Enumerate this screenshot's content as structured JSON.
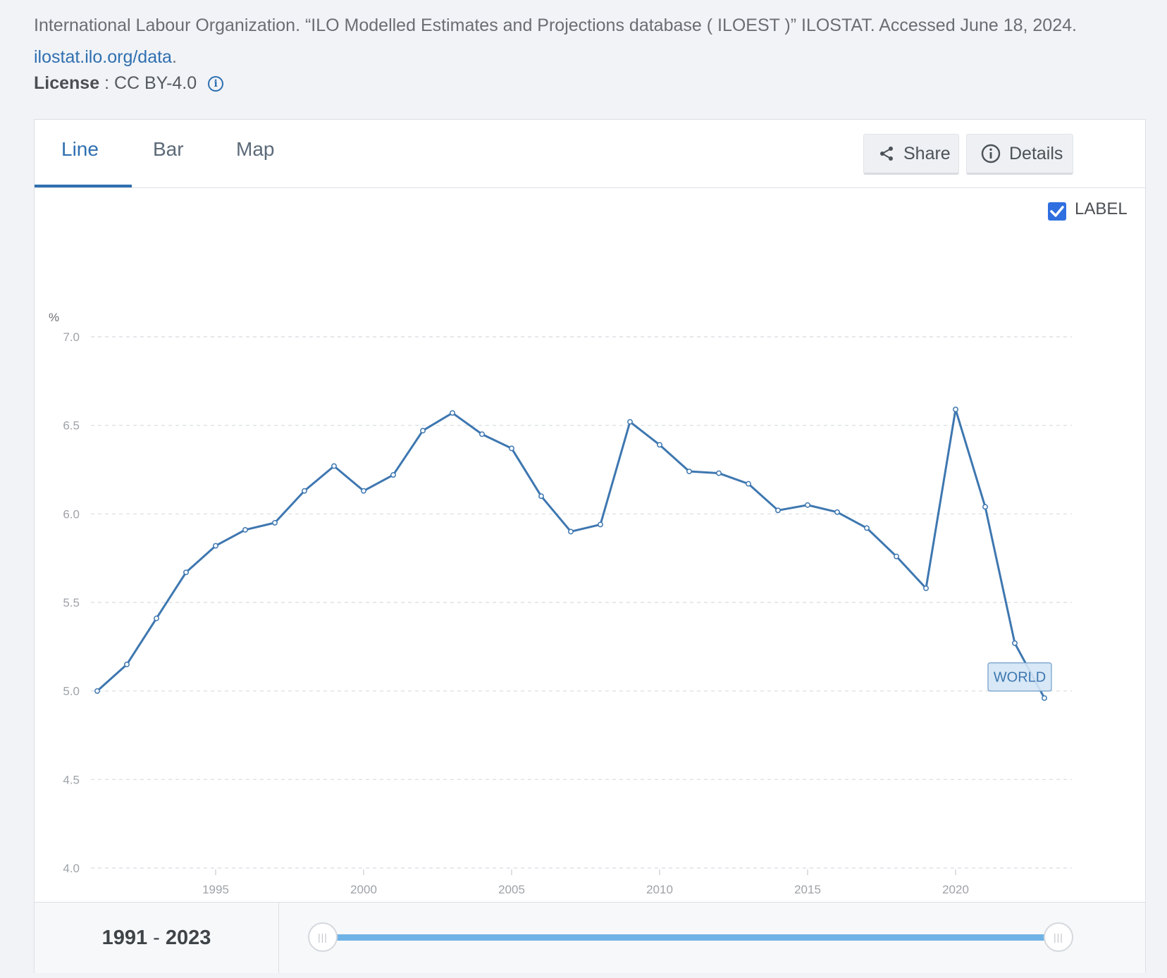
{
  "citation": {
    "text": "International Labour Organization. “ILO Modelled Estimates and Projections database ( ILOEST )” ILOSTAT. Accessed June 18, 2024.",
    "link": "ilostat.ilo.org/data",
    "link_suffix": "."
  },
  "license": {
    "label": "License",
    "value": ": CC BY-4.0"
  },
  "tabs": [
    "Line",
    "Bar",
    "Map"
  ],
  "buttons": {
    "share": "Share",
    "details": "Details"
  },
  "label_toggle": "LABEL",
  "range": {
    "start": "1991",
    "sep": "-",
    "end": "2023"
  },
  "colors": {
    "line": "#3e77b0",
    "accent": "#2f6fb0",
    "label_bg": "#d4e5f5"
  },
  "chart_data": {
    "type": "line",
    "ylabel": "%",
    "ylim": [
      4.0,
      7.0
    ],
    "yticks": [
      "7.0",
      "6.5",
      "6.0",
      "5.5",
      "5.0",
      "4.5",
      "4.0"
    ],
    "xticks": [
      "1995",
      "2000",
      "2005",
      "2010",
      "2015",
      "2020"
    ],
    "grid": true,
    "series": [
      {
        "name": "WORLD",
        "x": [
          1991,
          1992,
          1993,
          1994,
          1995,
          1996,
          1997,
          1998,
          1999,
          2000,
          2001,
          2002,
          2003,
          2004,
          2005,
          2006,
          2007,
          2008,
          2009,
          2010,
          2011,
          2012,
          2013,
          2014,
          2015,
          2016,
          2017,
          2018,
          2019,
          2020,
          2021,
          2022,
          2023
        ],
        "values": [
          5.0,
          5.15,
          5.41,
          5.67,
          5.82,
          5.91,
          5.95,
          6.13,
          6.27,
          6.13,
          6.22,
          6.47,
          6.57,
          6.45,
          6.37,
          6.1,
          5.9,
          5.94,
          6.52,
          6.39,
          6.24,
          6.23,
          6.17,
          6.02,
          6.05,
          6.01,
          5.92,
          5.76,
          5.58,
          6.59,
          6.04,
          5.27,
          4.96
        ]
      }
    ]
  }
}
